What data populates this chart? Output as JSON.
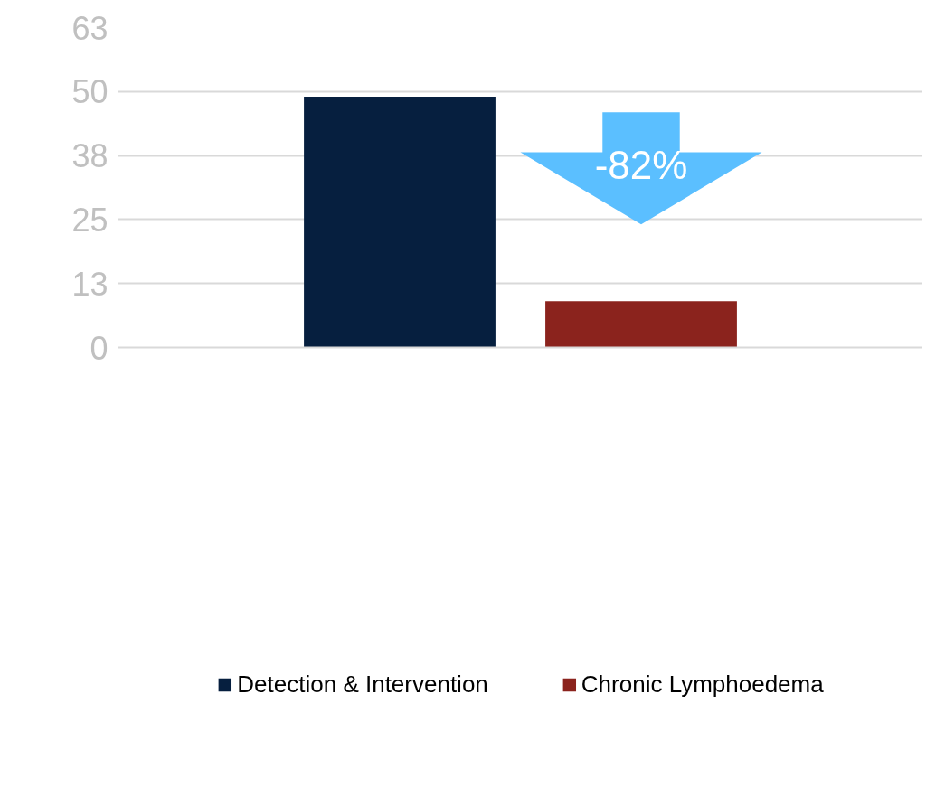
{
  "chart_data": {
    "type": "bar",
    "categories": [
      null
    ],
    "series": [
      {
        "name": "Detection & Intervention",
        "color": "#061f3f",
        "values": [
          49.4
        ]
      },
      {
        "name": "Chronic Lymphoedema",
        "color": "#8b231d",
        "values": [
          9.1
        ]
      }
    ],
    "ylim": [
      0,
      63
    ],
    "yticks": [
      0,
      {
        "value": 12.6,
        "label": "13"
      },
      {
        "value": 25.2,
        "label": "25"
      },
      {
        "value": 37.8,
        "label": "38"
      },
      {
        "value": 50.4,
        "label": "50"
      },
      63
    ],
    "grid": "y",
    "legend": "bottom",
    "tick_labels": "y",
    "annotations": [
      "-82%"
    ]
  }
}
